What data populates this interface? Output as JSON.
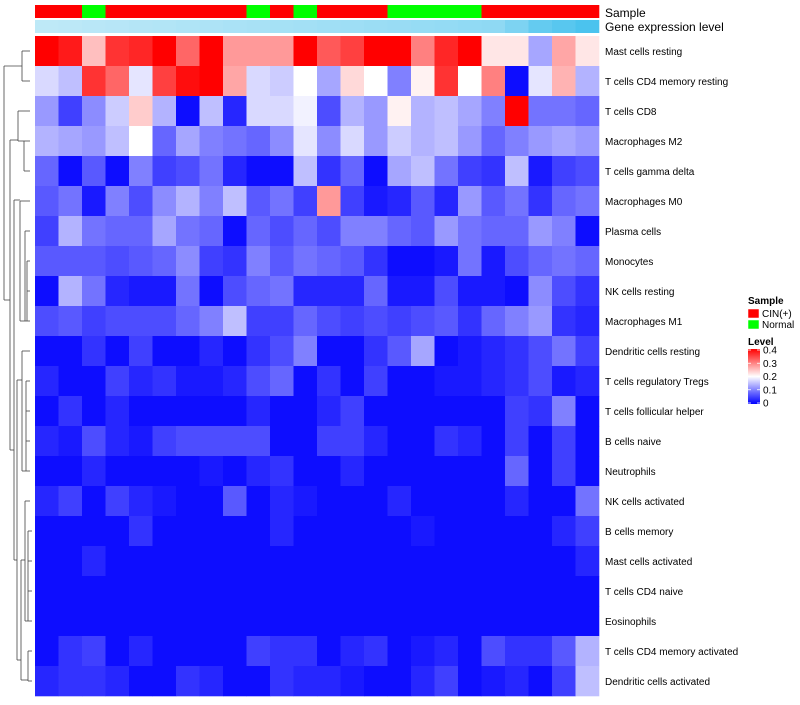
{
  "chart_data": {
    "type": "heatmap",
    "title": "",
    "annotation_labels": {
      "sample": "Sample",
      "gene_level": "Gene expression level"
    },
    "sample_track": [
      "CIN(+)",
      "CIN(+)",
      "Normal",
      "CIN(+)",
      "CIN(+)",
      "CIN(+)",
      "CIN(+)",
      "CIN(+)",
      "CIN(+)",
      "Normal",
      "CIN(+)",
      "Normal",
      "CIN(+)",
      "CIN(+)",
      "CIN(+)",
      "Normal",
      "Normal",
      "Normal",
      "Normal",
      "CIN(+)",
      "CIN(+)",
      "CIN(+)",
      "CIN(+)",
      "CIN(+)"
    ],
    "gene_level_track": [
      0.08,
      0.1,
      0.12,
      0.14,
      0.16,
      0.18,
      0.2,
      0.22,
      0.24,
      0.26,
      0.28,
      0.3,
      0.32,
      0.34,
      0.36,
      0.38,
      0.4,
      0.42,
      0.44,
      0.46,
      0.6,
      0.8,
      0.9,
      1.0
    ],
    "rows": [
      "Mast cells resting",
      "T cells CD4 memory resting",
      "T cells CD8",
      "Macrophages M2",
      "T cells gamma delta",
      "Macrophages M0",
      "Plasma cells",
      "Monocytes",
      "NK cells resting",
      "Macrophages M1",
      "Dendritic cells resting",
      "T cells regulatory  Tregs",
      "T cells follicular helper",
      "B cells naive",
      "Neutrophils",
      "NK cells activated",
      "B cells memory",
      "Mast cells activated",
      "T cells CD4 naive",
      "Eosinophils",
      "T cells CD4 memory activated",
      "Dendritic cells activated"
    ],
    "values": [
      [
        0.4,
        0.38,
        0.25,
        0.36,
        0.37,
        0.4,
        0.32,
        0.4,
        0.28,
        0.28,
        0.28,
        0.4,
        0.33,
        0.35,
        0.4,
        0.4,
        0.3,
        0.37,
        0.4,
        0.22,
        0.22,
        0.13,
        0.27,
        0.22
      ],
      [
        0.17,
        0.15,
        0.36,
        0.32,
        0.18,
        0.35,
        0.39,
        0.4,
        0.27,
        0.17,
        0.16,
        0.2,
        0.13,
        0.23,
        0.2,
        0.1,
        0.21,
        0.36,
        0.2,
        0.3,
        0.01,
        0.18,
        0.26,
        0.14
      ],
      [
        0.12,
        0.05,
        0.11,
        0.16,
        0.24,
        0.14,
        0.01,
        0.15,
        0.03,
        0.17,
        0.17,
        0.19,
        0.06,
        0.14,
        0.12,
        0.21,
        0.14,
        0.15,
        0.13,
        0.1,
        0.4,
        0.09,
        0.09,
        0.08
      ],
      [
        0.14,
        0.13,
        0.12,
        0.15,
        0.2,
        0.08,
        0.13,
        0.1,
        0.09,
        0.08,
        0.11,
        0.18,
        0.11,
        0.17,
        0.12,
        0.16,
        0.14,
        0.15,
        0.12,
        0.08,
        0.1,
        0.12,
        0.13,
        0.12
      ],
      [
        0.08,
        0.01,
        0.07,
        0.01,
        0.1,
        0.05,
        0.06,
        0.09,
        0.03,
        0.01,
        0.01,
        0.15,
        0.04,
        0.08,
        0.01,
        0.13,
        0.15,
        0.09,
        0.05,
        0.04,
        0.15,
        0.02,
        0.05,
        0.06
      ],
      [
        0.07,
        0.09,
        0.02,
        0.1,
        0.06,
        0.11,
        0.14,
        0.1,
        0.15,
        0.07,
        0.09,
        0.05,
        0.28,
        0.05,
        0.02,
        0.03,
        0.07,
        0.03,
        0.12,
        0.07,
        0.09,
        0.04,
        0.08,
        0.09
      ],
      [
        0.05,
        0.14,
        0.09,
        0.08,
        0.08,
        0.13,
        0.09,
        0.08,
        0.01,
        0.08,
        0.06,
        0.08,
        0.06,
        0.1,
        0.1,
        0.08,
        0.07,
        0.12,
        0.09,
        0.08,
        0.08,
        0.12,
        0.1,
        0.01
      ],
      [
        0.07,
        0.07,
        0.07,
        0.06,
        0.07,
        0.08,
        0.11,
        0.05,
        0.04,
        0.1,
        0.07,
        0.09,
        0.08,
        0.07,
        0.04,
        0.01,
        0.01,
        0.02,
        0.09,
        0.02,
        0.06,
        0.08,
        0.09,
        0.08
      ],
      [
        0.01,
        0.14,
        0.09,
        0.03,
        0.02,
        0.02,
        0.09,
        0.01,
        0.06,
        0.08,
        0.09,
        0.03,
        0.03,
        0.03,
        0.08,
        0.02,
        0.02,
        0.06,
        0.02,
        0.02,
        0.01,
        0.11,
        0.06,
        0.04
      ],
      [
        0.06,
        0.07,
        0.05,
        0.06,
        0.06,
        0.06,
        0.08,
        0.1,
        0.15,
        0.05,
        0.05,
        0.08,
        0.06,
        0.05,
        0.06,
        0.05,
        0.06,
        0.07,
        0.04,
        0.08,
        0.1,
        0.12,
        0.04,
        0.03
      ],
      [
        0.01,
        0.01,
        0.04,
        0.01,
        0.05,
        0.01,
        0.01,
        0.03,
        0.01,
        0.04,
        0.06,
        0.1,
        0.01,
        0.01,
        0.04,
        0.07,
        0.13,
        0.01,
        0.02,
        0.03,
        0.04,
        0.06,
        0.09,
        0.05
      ],
      [
        0.03,
        0.01,
        0.01,
        0.05,
        0.03,
        0.04,
        0.02,
        0.02,
        0.03,
        0.06,
        0.08,
        0.01,
        0.04,
        0.01,
        0.05,
        0.01,
        0.01,
        0.02,
        0.02,
        0.03,
        0.04,
        0.06,
        0.02,
        0.03
      ],
      [
        0.01,
        0.04,
        0.01,
        0.03,
        0.01,
        0.01,
        0.01,
        0.01,
        0.01,
        0.03,
        0.01,
        0.01,
        0.03,
        0.05,
        0.01,
        0.01,
        0.01,
        0.01,
        0.01,
        0.01,
        0.05,
        0.04,
        0.1,
        0.01
      ],
      [
        0.03,
        0.02,
        0.06,
        0.03,
        0.02,
        0.05,
        0.06,
        0.06,
        0.06,
        0.06,
        0.01,
        0.01,
        0.05,
        0.05,
        0.03,
        0.01,
        0.01,
        0.04,
        0.03,
        0.01,
        0.05,
        0.01,
        0.05,
        0.01
      ],
      [
        0.01,
        0.01,
        0.03,
        0.01,
        0.01,
        0.01,
        0.01,
        0.02,
        0.01,
        0.03,
        0.04,
        0.01,
        0.01,
        0.03,
        0.01,
        0.01,
        0.01,
        0.01,
        0.01,
        0.01,
        0.08,
        0.01,
        0.05,
        0.01
      ],
      [
        0.03,
        0.05,
        0.01,
        0.05,
        0.03,
        0.02,
        0.01,
        0.01,
        0.07,
        0.01,
        0.03,
        0.02,
        0.01,
        0.01,
        0.01,
        0.03,
        0.01,
        0.01,
        0.01,
        0.01,
        0.03,
        0.01,
        0.01,
        0.09
      ],
      [
        0.01,
        0.01,
        0.01,
        0.01,
        0.04,
        0.01,
        0.01,
        0.01,
        0.01,
        0.01,
        0.03,
        0.01,
        0.01,
        0.01,
        0.01,
        0.01,
        0.02,
        0.01,
        0.01,
        0.01,
        0.01,
        0.01,
        0.03,
        0.05
      ],
      [
        0.01,
        0.01,
        0.03,
        0.01,
        0.01,
        0.01,
        0.01,
        0.01,
        0.01,
        0.01,
        0.01,
        0.01,
        0.01,
        0.01,
        0.01,
        0.01,
        0.01,
        0.01,
        0.01,
        0.01,
        0.01,
        0.01,
        0.01,
        0.03
      ],
      [
        0.01,
        0.01,
        0.01,
        0.01,
        0.01,
        0.01,
        0.01,
        0.01,
        0.01,
        0.01,
        0.01,
        0.01,
        0.01,
        0.01,
        0.01,
        0.01,
        0.01,
        0.01,
        0.01,
        0.01,
        0.01,
        0.01,
        0.01,
        0.01
      ],
      [
        0.01,
        0.01,
        0.01,
        0.01,
        0.01,
        0.01,
        0.01,
        0.01,
        0.01,
        0.01,
        0.01,
        0.01,
        0.01,
        0.01,
        0.01,
        0.01,
        0.01,
        0.01,
        0.01,
        0.01,
        0.01,
        0.01,
        0.01,
        0.01
      ],
      [
        0.01,
        0.04,
        0.05,
        0.01,
        0.03,
        0.01,
        0.01,
        0.01,
        0.01,
        0.05,
        0.04,
        0.04,
        0.01,
        0.03,
        0.04,
        0.01,
        0.02,
        0.03,
        0.01,
        0.06,
        0.04,
        0.04,
        0.07,
        0.14
      ],
      [
        0.03,
        0.04,
        0.04,
        0.03,
        0.01,
        0.01,
        0.04,
        0.03,
        0.01,
        0.01,
        0.04,
        0.03,
        0.03,
        0.02,
        0.01,
        0.01,
        0.03,
        0.05,
        0.01,
        0.02,
        0.03,
        0.01,
        0.05,
        0.15
      ]
    ],
    "legend_sample": {
      "title": "Sample",
      "items": [
        {
          "label": "CIN(+)",
          "color": "#ff0000"
        },
        {
          "label": "Normal",
          "color": "#00ff00"
        }
      ]
    },
    "legend_level": {
      "title": "Level",
      "ticks": [
        "0.4",
        "0.3",
        "0.2",
        "0.1",
        "0"
      ],
      "range": [
        0,
        0.4
      ]
    },
    "colors": {
      "low": "#0000ff",
      "mid": "#ffffff",
      "high": "#ff0000",
      "cin": "#ff0000",
      "normal": "#00ff00",
      "gene_light": "#c8ecf8",
      "gene_dark": "#4bc3ee"
    }
  }
}
